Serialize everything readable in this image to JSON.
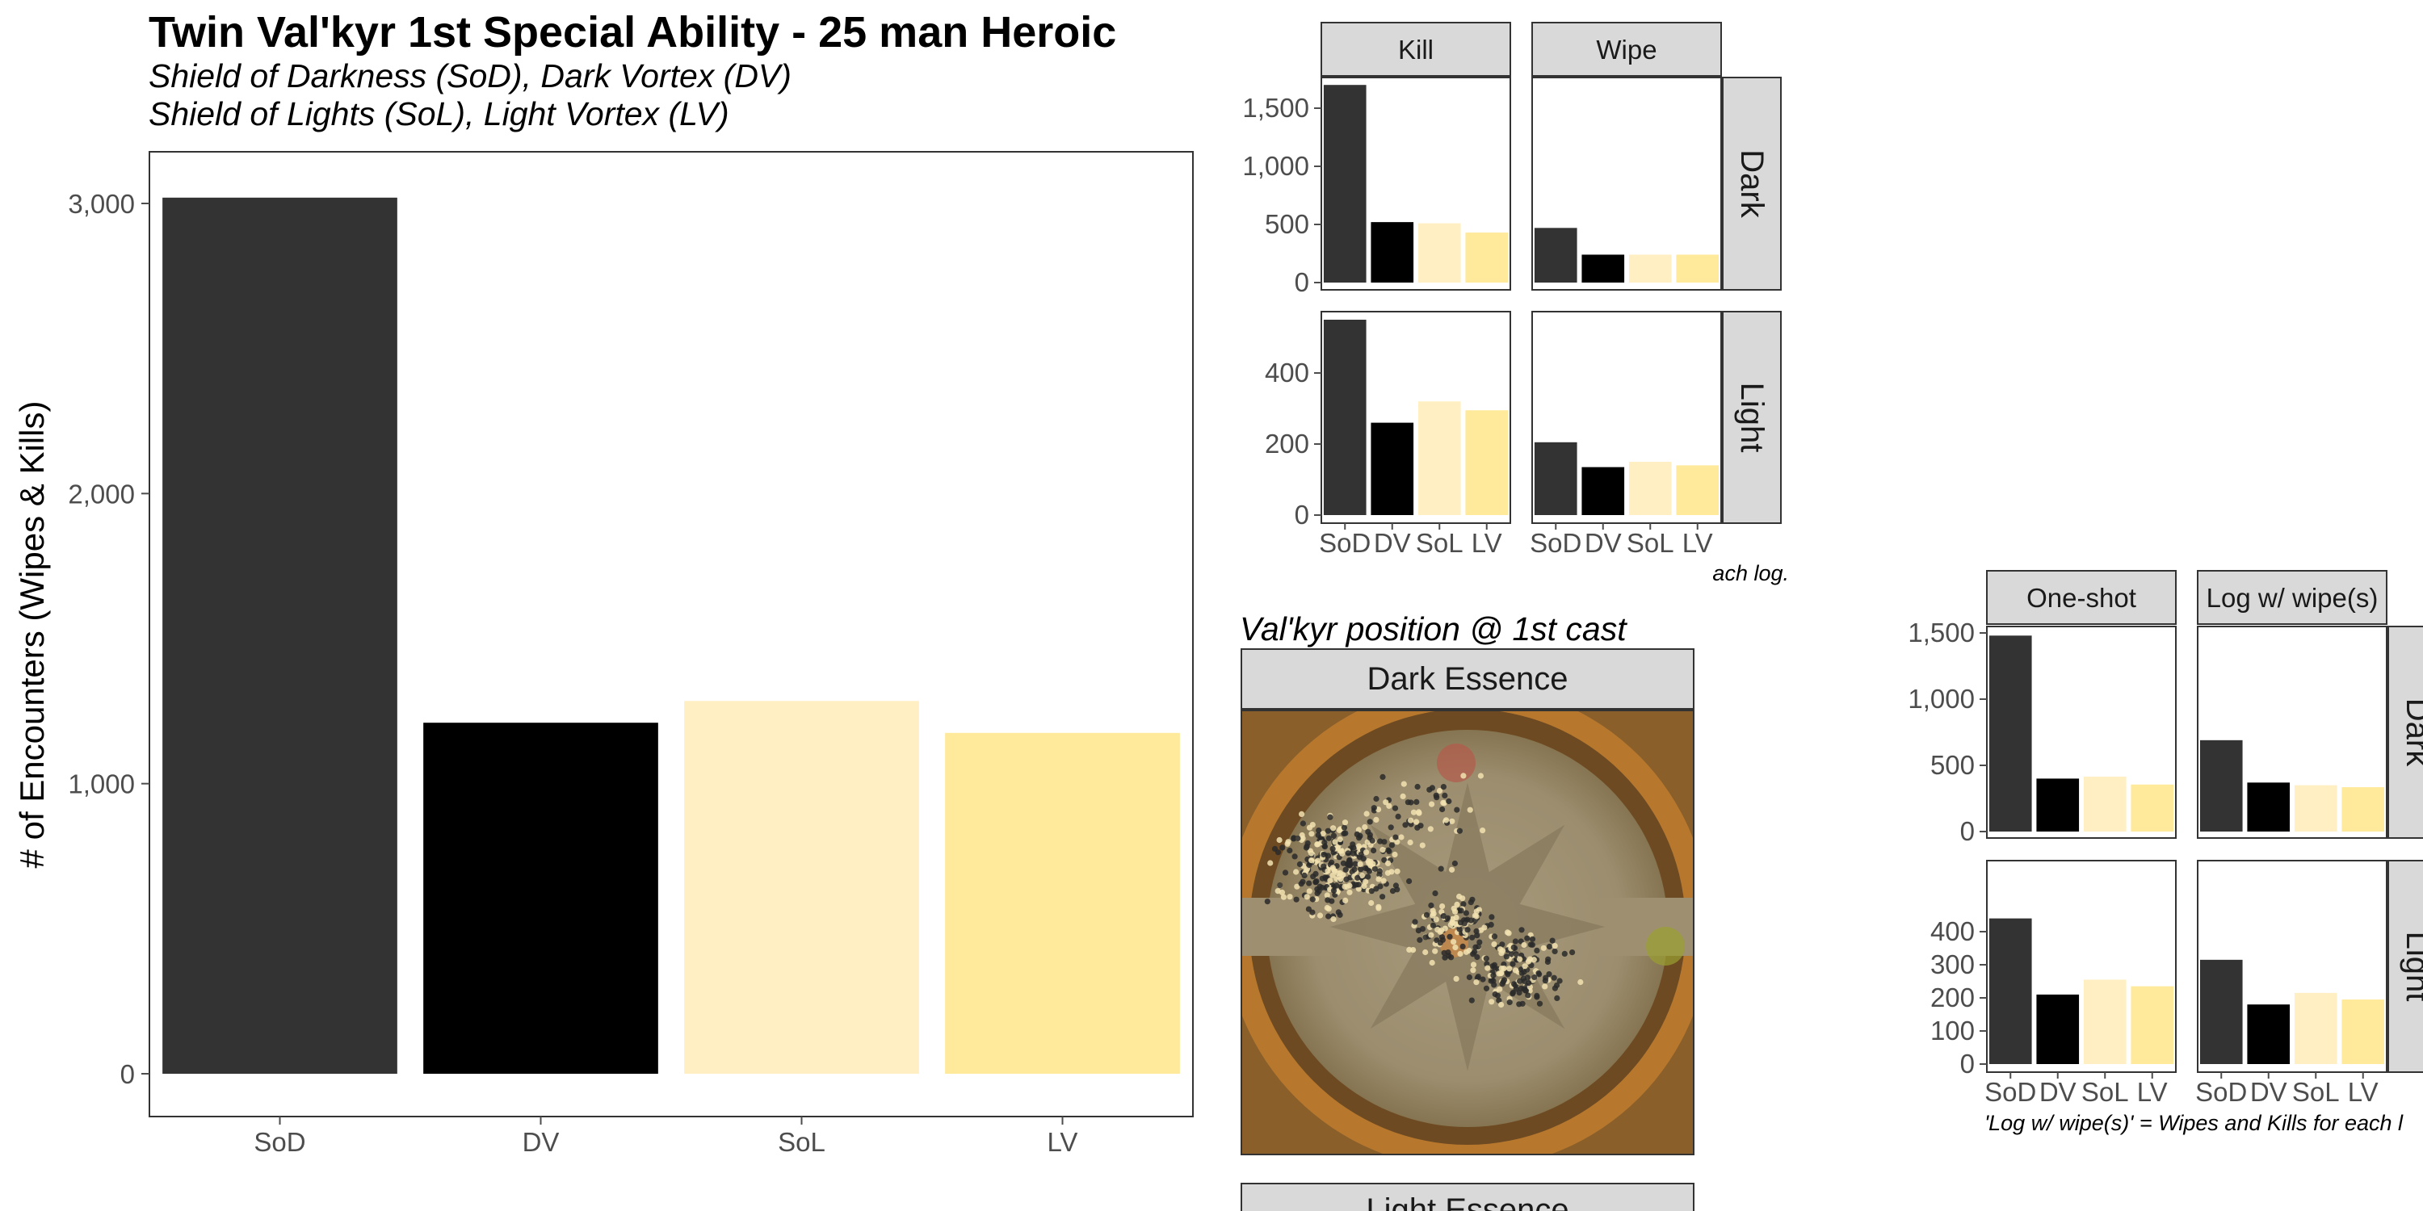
{
  "colors": {
    "SoD": "#333333",
    "DV": "#000000",
    "SoL": "#ffefc2",
    "LV": "#ffe99a",
    "strip_bg": "#d9d9d9",
    "panel_border": "#333333",
    "tick": "#4d4d4d"
  },
  "main": {
    "title": "Twin Val'kyr 1st Special Ability - 25 man Heroic",
    "subtitle_line1": "Shield of Darkness (SoD), Dark Vortex (DV)",
    "subtitle_line2": "Shield of Lights (SoL), Light Vortex (LV)"
  },
  "facet_note": "ach log.",
  "facet2_note": "'Log w/ wipe(s)' = Wipes and Kills for each l",
  "map": {
    "title": "Val'kyr position @ 1st cast",
    "strip_top": "Dark Essence",
    "strip_bottom": "Light Essence"
  },
  "chart_data": [
    {
      "type": "bar",
      "categories": [
        "SoD",
        "DV",
        "SoL",
        "LV"
      ],
      "values": [
        3020,
        1210,
        1285,
        1175
      ],
      "ylabel": "# of Encounters (Wipes & Kills)",
      "ylim": [
        0,
        3200
      ],
      "yticks": [
        0,
        1000,
        2000,
        3000
      ],
      "ytick_labels": [
        "0",
        "1,000",
        "2,000",
        "3,000"
      ],
      "grid": false
    },
    {
      "type": "bar",
      "facet_cols": [
        "Kill",
        "Wipe"
      ],
      "facet_rows": [
        "Dark",
        "Light"
      ],
      "categories": [
        "SoD",
        "DV",
        "SoL",
        "LV"
      ],
      "row_scales": [
        {
          "ylim": [
            0,
            1850
          ],
          "yticks": [
            0,
            500,
            1000,
            1500
          ],
          "ytick_labels": [
            "0",
            "500",
            "1,000",
            "1,500"
          ]
        },
        {
          "ylim": [
            0,
            575
          ],
          "yticks": [
            0,
            200,
            400
          ],
          "ytick_labels": [
            "0",
            "200",
            "400"
          ]
        }
      ],
      "panels": [
        {
          "col": "Kill",
          "row": "Dark",
          "values": [
            1700,
            520,
            510,
            430
          ]
        },
        {
          "col": "Wipe",
          "row": "Dark",
          "values": [
            470,
            240,
            240,
            240
          ]
        },
        {
          "col": "Kill",
          "row": "Light",
          "values": [
            550,
            260,
            320,
            295
          ]
        },
        {
          "col": "Wipe",
          "row": "Light",
          "values": [
            205,
            135,
            150,
            140
          ]
        }
      ]
    },
    {
      "type": "bar",
      "facet_cols": [
        "One-shot",
        "Log w/ wipe(s)"
      ],
      "facet_rows": [
        "Dark",
        "Light"
      ],
      "categories": [
        "SoD",
        "DV",
        "SoL",
        "LV"
      ],
      "row_scales": [
        {
          "ylim": [
            0,
            1600
          ],
          "yticks": [
            0,
            500,
            1000,
            1500
          ],
          "ytick_labels": [
            "0",
            "500",
            "1,000",
            "1,500"
          ]
        },
        {
          "ylim": [
            0,
            450
          ],
          "yticks": [
            0,
            100,
            200,
            300,
            400
          ],
          "ytick_labels": [
            "0",
            "100",
            "200",
            "300",
            "400"
          ]
        }
      ],
      "panels": [
        {
          "col": "One-shot",
          "row": "Dark",
          "values": [
            1480,
            400,
            415,
            355
          ]
        },
        {
          "col": "Log w/ wipe(s)",
          "row": "Dark",
          "values": [
            690,
            370,
            350,
            335
          ]
        },
        {
          "col": "One-shot",
          "row": "Light",
          "values": [
            440,
            210,
            255,
            235
          ]
        },
        {
          "col": "Log w/ wipe(s)",
          "row": "Light",
          "values": [
            315,
            180,
            215,
            195
          ]
        }
      ]
    }
  ]
}
